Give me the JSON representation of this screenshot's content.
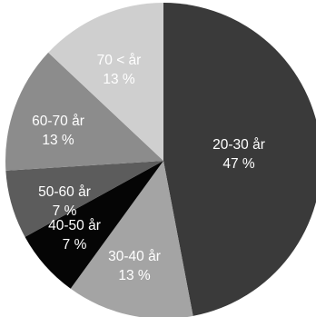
{
  "chart_data": {
    "type": "pie",
    "title": "",
    "slices": [
      {
        "label": "20-30 år",
        "percent_label": "47 %",
        "value": 47,
        "color": "#3a3a3a"
      },
      {
        "label": "30-40 år",
        "percent_label": "13 %",
        "value": 13,
        "color": "#a4a4a4"
      },
      {
        "label": "40-50 år",
        "percent_label": "7 %",
        "value": 7,
        "color": "#050505"
      },
      {
        "label": "50-60 år",
        "percent_label": "7 %",
        "value": 7,
        "color": "#5c5c5c"
      },
      {
        "label": "60-70 år",
        "percent_label": "13 %",
        "value": 13,
        "color": "#8c8c8c"
      },
      {
        "label": "70 < år",
        "percent_label": "13 %",
        "value": 13,
        "color": "#cfcfcf"
      }
    ],
    "start_angle": "12 o'clock",
    "direction": "clockwise",
    "legend": "none",
    "label_color": "#ffffff"
  }
}
